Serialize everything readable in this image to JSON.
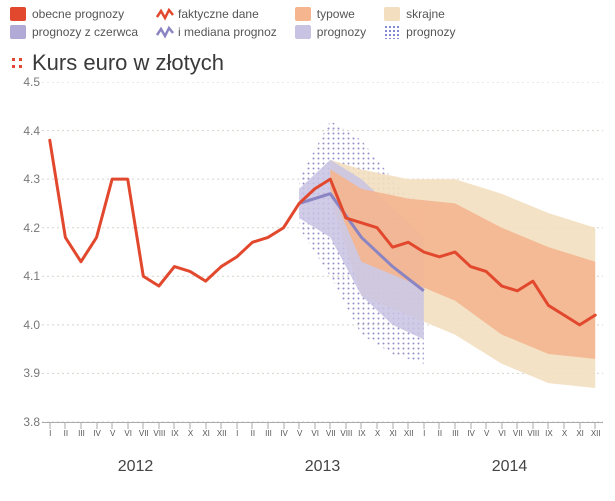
{
  "legend": {
    "obecne": {
      "label": "obecne prognozy",
      "color": "#e2482d"
    },
    "czerwca": {
      "label": "prognozy z czerwca",
      "color": "#b1a9d6"
    },
    "faktyczne_top": {
      "label": "faktyczne dane",
      "color": "#e2482d"
    },
    "faktyczne_bot": {
      "label": "i mediana prognoz",
      "color": "#8a84c3"
    },
    "typowe_top": {
      "label": "typowe",
      "color": "#f4b58f"
    },
    "typowe_bot": {
      "label": "prognozy",
      "color": "#c8c3e3"
    },
    "skrajne_top": {
      "label": "skrajne",
      "color": "#f3dfc0"
    },
    "skrajne_bot": {
      "label": "prognozy",
      "dotted": true
    }
  },
  "title": "Kurs euro w złotych",
  "chart": {
    "type": "line-with-bands",
    "y": {
      "min": 3.8,
      "max": 4.5,
      "ticks": [
        3.8,
        3.9,
        4.0,
        4.1,
        4.2,
        4.3,
        4.4,
        4.5
      ]
    },
    "x": {
      "years": [
        "2012",
        "2013",
        "2014"
      ],
      "months": [
        "I",
        "II",
        "III",
        "IV",
        "V",
        "VI",
        "VII",
        "VIII",
        "IX",
        "X",
        "XI",
        "XII"
      ]
    },
    "colors": {
      "actual_line": "#e2482d",
      "median_line": "#8a84c3",
      "grid": "#d7d3cc",
      "axis_text": "#777777",
      "june_band": "#c8c3e3",
      "june_dotted": "#8a84c3",
      "typowe_band": "#f4b58f",
      "skrajne_band": "#f3dfc0",
      "background": "#ffffff"
    },
    "line_width": 3,
    "actual": [
      {
        "t": 0,
        "v": 4.38
      },
      {
        "t": 1,
        "v": 4.18
      },
      {
        "t": 2,
        "v": 4.13
      },
      {
        "t": 3,
        "v": 4.18
      },
      {
        "t": 4,
        "v": 4.3
      },
      {
        "t": 5,
        "v": 4.3
      },
      {
        "t": 6,
        "v": 4.1
      },
      {
        "t": 7,
        "v": 4.08
      },
      {
        "t": 8,
        "v": 4.12
      },
      {
        "t": 9,
        "v": 4.11
      },
      {
        "t": 10,
        "v": 4.09
      },
      {
        "t": 11,
        "v": 4.12
      },
      {
        "t": 12,
        "v": 4.14
      },
      {
        "t": 13,
        "v": 4.17
      },
      {
        "t": 14,
        "v": 4.18
      },
      {
        "t": 15,
        "v": 4.2
      },
      {
        "t": 16,
        "v": 4.25
      },
      {
        "t": 17,
        "v": 4.28
      },
      {
        "t": 18,
        "v": 4.3
      }
    ],
    "median_forecast": [
      {
        "t": 18,
        "v": 4.3
      },
      {
        "t": 19,
        "v": 4.22
      },
      {
        "t": 20,
        "v": 4.21
      },
      {
        "t": 21,
        "v": 4.2
      },
      {
        "t": 22,
        "v": 4.16
      },
      {
        "t": 23,
        "v": 4.17
      },
      {
        "t": 24,
        "v": 4.15
      },
      {
        "t": 25,
        "v": 4.14
      },
      {
        "t": 26,
        "v": 4.15
      },
      {
        "t": 27,
        "v": 4.12
      },
      {
        "t": 28,
        "v": 4.11
      },
      {
        "t": 29,
        "v": 4.08
      },
      {
        "t": 30,
        "v": 4.07
      },
      {
        "t": 31,
        "v": 4.09
      },
      {
        "t": 32,
        "v": 4.04
      },
      {
        "t": 33,
        "v": 4.02
      },
      {
        "t": 34,
        "v": 4.0
      },
      {
        "t": 35,
        "v": 4.02
      }
    ],
    "typowe_band": [
      {
        "t": 18,
        "lo": 4.28,
        "hi": 4.32
      },
      {
        "t": 20,
        "lo": 4.13,
        "hi": 4.28
      },
      {
        "t": 23,
        "lo": 4.09,
        "hi": 4.26
      },
      {
        "t": 26,
        "lo": 4.05,
        "hi": 4.25
      },
      {
        "t": 29,
        "lo": 3.98,
        "hi": 4.2
      },
      {
        "t": 32,
        "lo": 3.94,
        "hi": 4.16
      },
      {
        "t": 35,
        "lo": 3.93,
        "hi": 4.13
      }
    ],
    "skrajne_band": [
      {
        "t": 18,
        "lo": 4.26,
        "hi": 4.34
      },
      {
        "t": 20,
        "lo": 4.06,
        "hi": 4.32
      },
      {
        "t": 23,
        "lo": 4.02,
        "hi": 4.3
      },
      {
        "t": 26,
        "lo": 3.98,
        "hi": 4.3
      },
      {
        "t": 29,
        "lo": 3.92,
        "hi": 4.27
      },
      {
        "t": 32,
        "lo": 3.88,
        "hi": 4.23
      },
      {
        "t": 35,
        "lo": 3.87,
        "hi": 4.2
      }
    ],
    "june_band": [
      {
        "t": 16,
        "lo": 4.22,
        "hi": 4.28
      },
      {
        "t": 18,
        "lo": 4.18,
        "hi": 4.34
      },
      {
        "t": 20,
        "lo": 4.06,
        "hi": 4.3
      },
      {
        "t": 22,
        "lo": 4.0,
        "hi": 4.24
      },
      {
        "t": 24,
        "lo": 3.97,
        "hi": 4.18
      }
    ],
    "june_dotted_band": [
      {
        "t": 16,
        "lo": 4.2,
        "hi": 4.3
      },
      {
        "t": 18,
        "lo": 4.1,
        "hi": 4.42
      },
      {
        "t": 20,
        "lo": 3.98,
        "hi": 4.38
      },
      {
        "t": 22,
        "lo": 3.94,
        "hi": 4.3
      },
      {
        "t": 24,
        "lo": 3.92,
        "hi": 4.24
      }
    ],
    "june_median": [
      {
        "t": 16,
        "v": 4.25
      },
      {
        "t": 18,
        "v": 4.27
      },
      {
        "t": 20,
        "v": 4.18
      },
      {
        "t": 22,
        "v": 4.12
      },
      {
        "t": 24,
        "v": 4.07
      }
    ]
  }
}
